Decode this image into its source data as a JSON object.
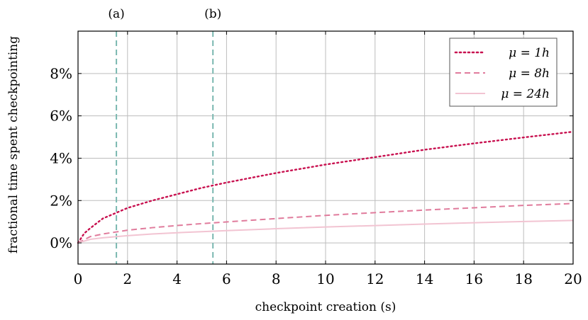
{
  "chart_data": {
    "type": "line",
    "xlabel": "checkpoint creation (s)",
    "ylabel": "fractional time spent checkpointing",
    "xlim": [
      0,
      20
    ],
    "ylim": [
      -1,
      10
    ],
    "grid": true,
    "legend_position": "top-right",
    "x_ticks": [
      0,
      2,
      4,
      6,
      8,
      10,
      12,
      14,
      16,
      18,
      20
    ],
    "y_ticks": [
      0,
      2,
      4,
      6,
      8
    ],
    "x_tick_labels": [
      "0",
      "2",
      "4",
      "6",
      "8",
      "10",
      "12",
      "14",
      "16",
      "18",
      "20"
    ],
    "y_tick_labels": [
      "0%",
      "2%",
      "4%",
      "6%",
      "8%"
    ],
    "markers": [
      {
        "label": "(a)",
        "x": 1.55
      },
      {
        "label": "(b)",
        "x": 5.45
      }
    ],
    "series": [
      {
        "name": "μ = 1h",
        "style": "dotted",
        "color": "#c8104f",
        "x": [
          0,
          0.25,
          0.5,
          1,
          1.5,
          2,
          3,
          4,
          5,
          6,
          8,
          10,
          12,
          14,
          16,
          18,
          20
        ],
        "y": [
          0,
          0.45,
          0.7,
          1.15,
          1.4,
          1.65,
          2.0,
          2.3,
          2.6,
          2.85,
          3.3,
          3.7,
          4.05,
          4.4,
          4.7,
          4.98,
          5.25
        ]
      },
      {
        "name": "μ = 8h",
        "style": "dashed",
        "color": "#e07b9c",
        "x": [
          0,
          0.5,
          1,
          2,
          3,
          4,
          5,
          6,
          8,
          10,
          12,
          14,
          16,
          18,
          20
        ],
        "y": [
          0,
          0.3,
          0.42,
          0.6,
          0.72,
          0.82,
          0.91,
          0.99,
          1.15,
          1.3,
          1.43,
          1.55,
          1.66,
          1.77,
          1.86
        ]
      },
      {
        "name": "μ = 24h",
        "style": "solid",
        "color": "#f2c4d2",
        "x": [
          0,
          0.5,
          1,
          2,
          3,
          4,
          5,
          6,
          8,
          10,
          12,
          14,
          16,
          18,
          20
        ],
        "y": [
          0,
          0.17,
          0.24,
          0.34,
          0.42,
          0.48,
          0.53,
          0.58,
          0.67,
          0.75,
          0.82,
          0.89,
          0.95,
          1.01,
          1.06
        ]
      }
    ],
    "legend": [
      {
        "symbol": "μ",
        "value": "= 1h"
      },
      {
        "symbol": "μ",
        "value": "= 8h"
      },
      {
        "symbol": "μ",
        "value": "= 24h"
      }
    ]
  },
  "colors": {
    "grid": "#bdbdbd",
    "marker_line": "#7ab8b0",
    "axis": "#000000"
  }
}
